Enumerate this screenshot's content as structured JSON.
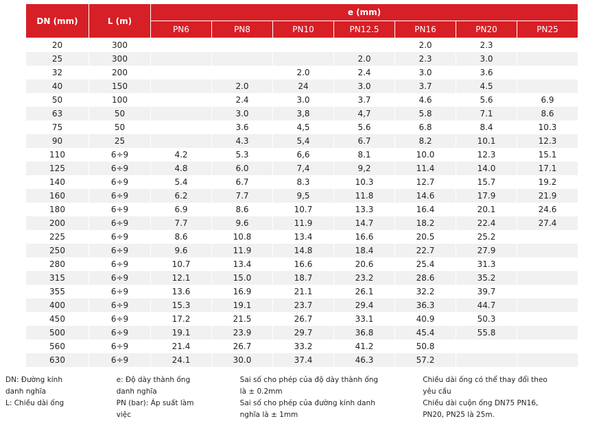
{
  "table": {
    "header": {
      "dn": "DN (mm)",
      "l": "L (m)",
      "e": "e (mm)",
      "pn": [
        "PN6",
        "PN8",
        "PN10",
        "PN12.5",
        "PN16",
        "PN20",
        "PN25"
      ]
    },
    "rows": [
      [
        "20",
        "300",
        null,
        null,
        null,
        null,
        "2.0",
        "2.3",
        null
      ],
      [
        "25",
        "300",
        null,
        null,
        null,
        "2.0",
        "2.3",
        "3.0",
        null
      ],
      [
        "32",
        "200",
        null,
        null,
        "2.0",
        "2.4",
        "3.0",
        "3.6",
        null
      ],
      [
        "40",
        "150",
        null,
        "2.0",
        "24",
        "3.0",
        "3.7",
        "4.5",
        null
      ],
      [
        "50",
        "100",
        null,
        "2.4",
        "3.0",
        "3.7",
        "4.6",
        "5.6",
        "6.9"
      ],
      [
        "63",
        "50",
        null,
        "3.0",
        "3,8",
        "4,7",
        "5.8",
        "7.1",
        "8.6"
      ],
      [
        "75",
        "50",
        null,
        "3.6",
        "4,5",
        "5.6",
        "6.8",
        "8.4",
        "10.3"
      ],
      [
        "90",
        "25",
        null,
        "4.3",
        "5,4",
        "6.7",
        "8.2",
        "10.1",
        "12.3"
      ],
      [
        "110",
        "6÷9",
        "4.2",
        "5.3",
        "6,6",
        "8.1",
        "10.0",
        "12.3",
        "15.1"
      ],
      [
        "125",
        "6÷9",
        "4.8",
        "6.0",
        "7,4",
        "9,2",
        "11.4",
        "14.0",
        "17.1"
      ],
      [
        "140",
        "6÷9",
        "5.4",
        "6.7",
        "8.3",
        "10.3",
        "12.7",
        "15.7",
        "19.2"
      ],
      [
        "160",
        "6÷9",
        "6.2",
        "7.7",
        "9,5",
        "11.8",
        "14.6",
        "17.9",
        "21.9"
      ],
      [
        "180",
        "6÷9",
        "6.9",
        "8.6",
        "10.7",
        "13.3",
        "16.4",
        "20.1",
        "24.6"
      ],
      [
        "200",
        "6÷9",
        "7.7",
        "9.6",
        "11.9",
        "14.7",
        "18.2",
        "22.4",
        "27.4"
      ],
      [
        "225",
        "6÷9",
        "8.6",
        "10.8",
        "13.4",
        "16.6",
        "20.5",
        "25.2",
        null
      ],
      [
        "250",
        "6÷9",
        "9.6",
        "11.9",
        "14.8",
        "18.4",
        "22.7",
        "27.9",
        null
      ],
      [
        "280",
        "6÷9",
        "10.7",
        "13.4",
        "16.6",
        "20.6",
        "25.4",
        "31.3",
        null
      ],
      [
        "315",
        "6÷9",
        "12.1",
        "15.0",
        "18.7",
        "23.2",
        "28.6",
        "35.2",
        null
      ],
      [
        "355",
        "6÷9",
        "13.6",
        "16.9",
        "21.1",
        "26.1",
        "32.2",
        "39.7",
        null
      ],
      [
        "400",
        "6÷9",
        "15.3",
        "19.1",
        "23.7",
        "29.4",
        "36.3",
        "44.7",
        null
      ],
      [
        "450",
        "6÷9",
        "17.2",
        "21.5",
        "26.7",
        "33.1",
        "40.9",
        "50.3",
        null
      ],
      [
        "500",
        "6÷9",
        "19.1",
        "23.9",
        "29.7",
        "36.8",
        "45.4",
        "55.8",
        null
      ],
      [
        "560",
        "6÷9",
        "21.4",
        "26.7",
        "33.2",
        "41.2",
        "50.8",
        null,
        null
      ],
      [
        "630",
        "6÷9",
        "24.1",
        "30.0",
        "37.4",
        "46.3",
        "57.2",
        null,
        null
      ]
    ]
  },
  "notes": [
    [
      "DN: Đường kính danh nghĩa",
      "L: Chiều dài ống"
    ],
    [
      "e: Độ dày thành ống danh nghĩa",
      "PN (bar): Áp suất làm việc"
    ],
    [
      "Sai số cho phép của độ dày thành ống là ± 0.2mm",
      "Sai số cho phép của đường kính danh nghĩa là ± 1mm"
    ],
    [
      "Chiều dài ống có thể thay đổi theo yêu cầu",
      "Chiều dài cuộn ống DN75 PN16, PN20, PN25 là 25m."
    ]
  ]
}
